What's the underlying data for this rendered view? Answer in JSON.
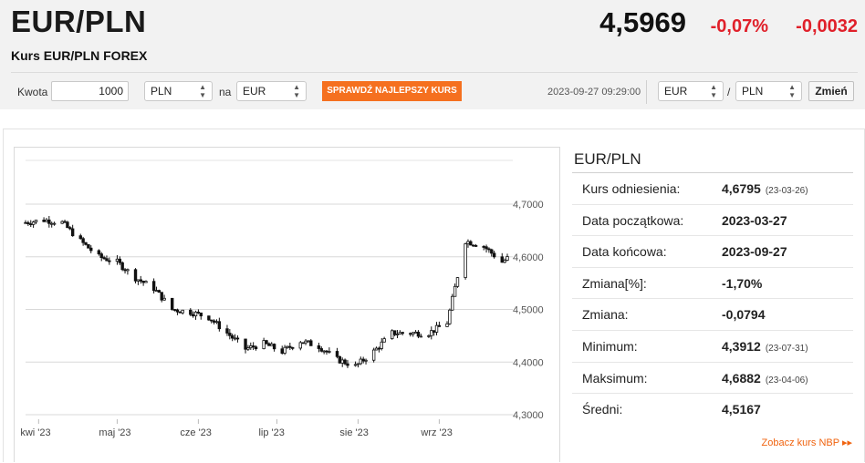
{
  "header": {
    "pair": "EUR/PLN",
    "subtitle": "Kurs EUR/PLN FOREX",
    "price": "4,5969",
    "change_pct": "-0,07%",
    "change_abs": "-0,0032"
  },
  "converter": {
    "amount_label": "Kwota",
    "amount_value": "1000",
    "from_currency": "PLN",
    "to_label": "na",
    "to_currency": "EUR",
    "check_button": "SPRAWDŹ NAJLEPSZY KURS",
    "timestamp": "2023-09-27 09:29:00",
    "pair_base": "EUR",
    "pair_separator": "/",
    "pair_quote": "PLN",
    "change_button": "Zmień"
  },
  "stats": {
    "title": "EUR/PLN",
    "rows": [
      {
        "key": "Kurs odniesienia:",
        "value": "4,6795",
        "date": "(23-03-26)"
      },
      {
        "key": "Data początkowa:",
        "value": "2023-03-27",
        "date": ""
      },
      {
        "key": "Data końcowa:",
        "value": "2023-09-27",
        "date": ""
      },
      {
        "key": "Zmiana[%]:",
        "value": "-1,70%",
        "date": ""
      },
      {
        "key": "Zmiana:",
        "value": "-0,0794",
        "date": ""
      },
      {
        "key": "Minimum:",
        "value": "4,3912",
        "date": "(23-07-31)"
      },
      {
        "key": "Maksimum:",
        "value": "4,6882",
        "date": "(23-04-06)"
      },
      {
        "key": "Średni:",
        "value": "4,5167",
        "date": ""
      }
    ],
    "nbp_link": "Zobacz kurs NBP ▸▸"
  },
  "colors": {
    "accent": "#f5701f",
    "negative": "#e0202a"
  },
  "chart_data": {
    "type": "line",
    "style": "ohlc-candles",
    "x_tick_labels": [
      "kwi '23",
      "maj '23",
      "cze '23",
      "lip '23",
      "sie '23",
      "wrz '23"
    ],
    "y_tick_labels": [
      "4,7000",
      "4,6000",
      "4,5000",
      "4,4000",
      "4,3000"
    ],
    "ylim": [
      4.3,
      4.7
    ],
    "grid": true,
    "series": [
      {
        "x": [
          "2023-03-27",
          "2023-04-03",
          "2023-04-10",
          "2023-04-17",
          "2023-04-24",
          "2023-05-01",
          "2023-05-08",
          "2023-05-15",
          "2023-05-22",
          "2023-05-29",
          "2023-06-05",
          "2023-06-12",
          "2023-06-19",
          "2023-06-26",
          "2023-07-03",
          "2023-07-10",
          "2023-07-17",
          "2023-07-24",
          "2023-07-31",
          "2023-08-07",
          "2023-08-14",
          "2023-08-21",
          "2023-08-28",
          "2023-09-04",
          "2023-09-11",
          "2023-09-18",
          "2023-09-25",
          "2023-09-27"
        ],
        "y": [
          4.665,
          4.67,
          4.665,
          4.63,
          4.6,
          4.59,
          4.56,
          4.54,
          4.5,
          4.495,
          4.485,
          4.455,
          4.425,
          4.435,
          4.42,
          4.44,
          4.43,
          4.405,
          4.392,
          4.42,
          4.455,
          4.455,
          4.455,
          4.475,
          4.63,
          4.62,
          4.59,
          4.597
        ]
      }
    ]
  }
}
